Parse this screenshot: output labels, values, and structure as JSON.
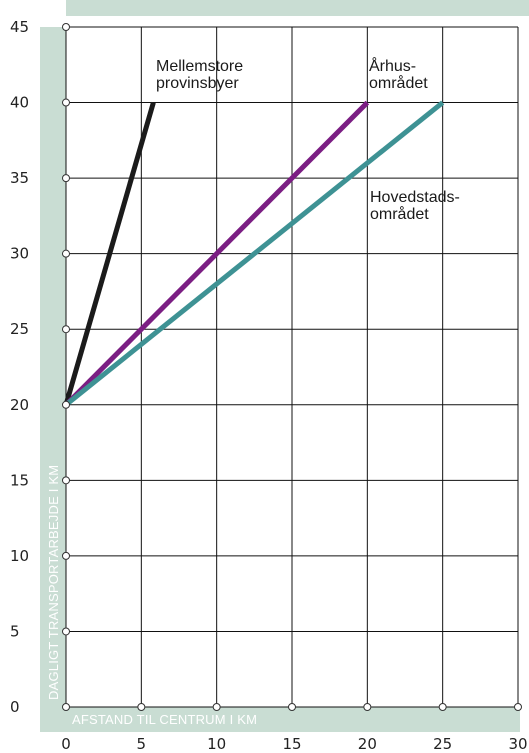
{
  "chart_data": {
    "type": "line",
    "xlabel": "AFSTAND TIL CENTRUM I KM",
    "ylabel": "DAGLIGT TRANSPORTARBEJDE I KM",
    "xlim": [
      0,
      30
    ],
    "ylim": [
      0,
      45
    ],
    "x_ticks": [
      0,
      5,
      10,
      15,
      20,
      25,
      30
    ],
    "y_ticks": [
      0,
      5,
      10,
      15,
      20,
      25,
      30,
      35,
      40,
      45
    ],
    "grid": true,
    "colors": {
      "band": "#c9ddd3",
      "grid": "#111111",
      "marker_stroke": "#333333"
    },
    "series": [
      {
        "name": "Mellemstore provinsbyer",
        "color": "#1b1b1b",
        "x": [
          0,
          5.8
        ],
        "y": [
          20,
          40
        ]
      },
      {
        "name": "Århusområdet",
        "color": "#7b1e83",
        "x": [
          0,
          20
        ],
        "y": [
          20,
          40
        ]
      },
      {
        "name": "Hovedstadsområdet",
        "color": "#3e9294",
        "x": [
          0,
          25
        ],
        "y": [
          20,
          40
        ]
      }
    ],
    "annotations": [
      {
        "lines": [
          "Mellemstore",
          "provinsbyer"
        ]
      },
      {
        "lines": [
          "Århus-",
          "området"
        ]
      },
      {
        "lines": [
          "Hovedstads-",
          "området"
        ]
      }
    ]
  }
}
